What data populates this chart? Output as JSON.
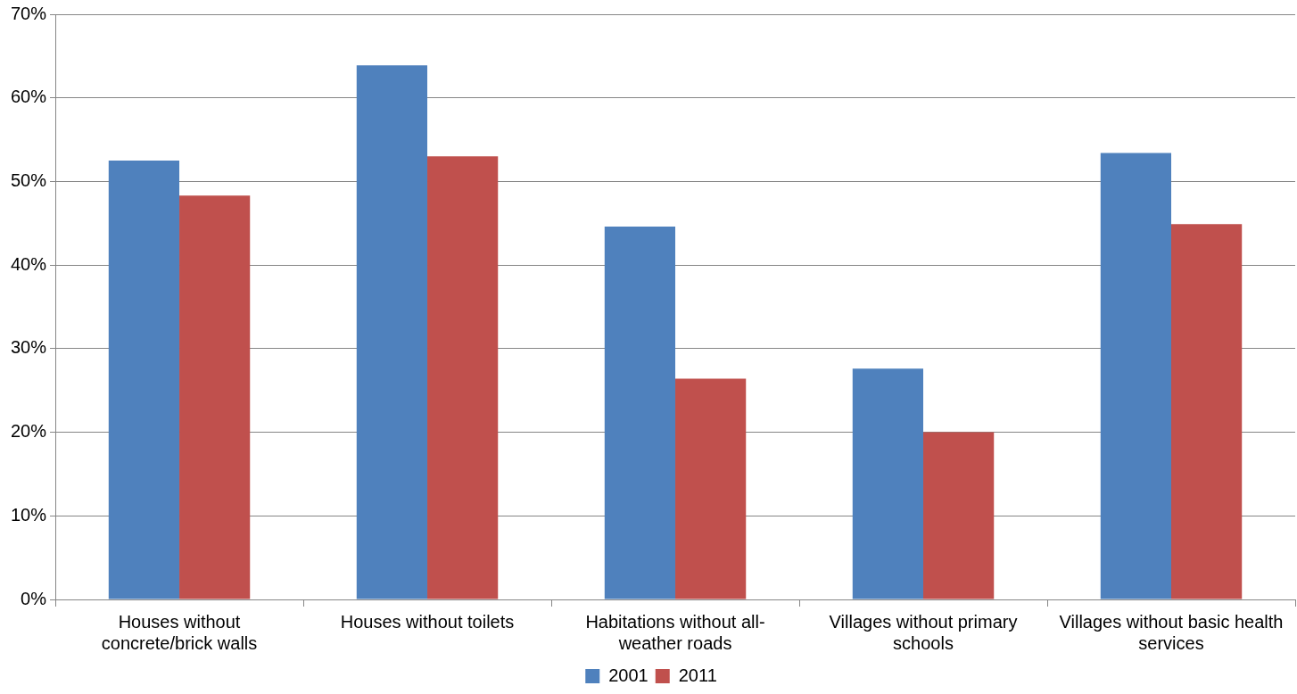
{
  "chart_data": {
    "type": "bar",
    "categories": [
      "Houses without concrete/brick walls",
      "Houses without toilets",
      "Habitations without all-weather roads",
      "Villages without primary schools",
      "Villages without basic health services"
    ],
    "series": [
      {
        "name": "2001",
        "color": "#4f81bd",
        "values": [
          52.5,
          63.9,
          44.6,
          27.6,
          53.4
        ]
      },
      {
        "name": "2011",
        "color": "#c0504d",
        "values": [
          48.3,
          53.0,
          26.4,
          20.0,
          44.9
        ]
      }
    ],
    "ylim": [
      0,
      70
    ],
    "yticks": [
      {
        "value": 0,
        "label": "0%"
      },
      {
        "value": 10,
        "label": "10%"
      },
      {
        "value": 20,
        "label": "20%"
      },
      {
        "value": 30,
        "label": "30%"
      },
      {
        "value": 40,
        "label": "40%"
      },
      {
        "value": 50,
        "label": "50%"
      },
      {
        "value": 60,
        "label": "60%"
      },
      {
        "value": 70,
        "label": "70%"
      }
    ],
    "grid": "y",
    "legend": "bottom"
  }
}
